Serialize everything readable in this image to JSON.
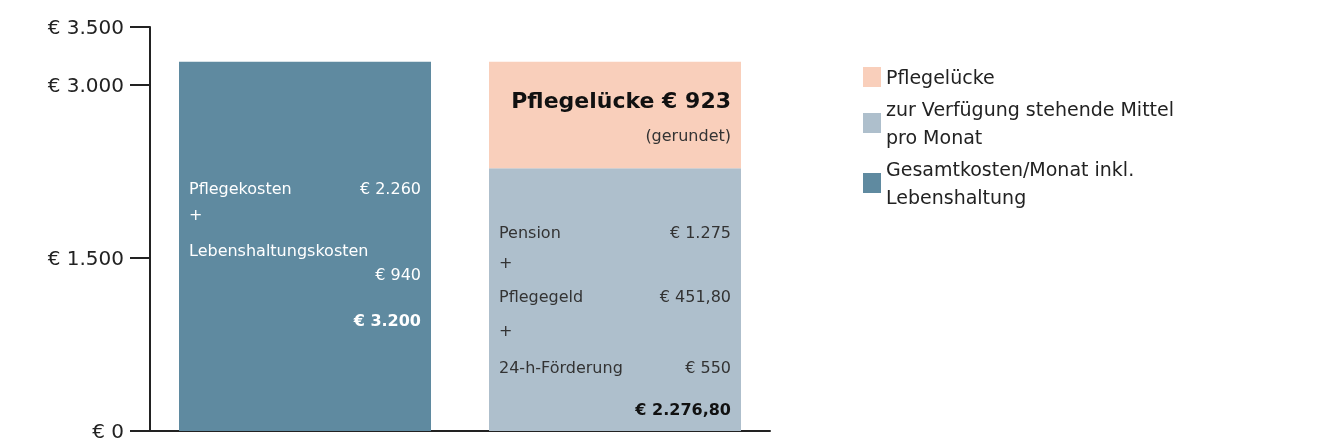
{
  "chart_data": {
    "type": "bar",
    "stacked": true,
    "categories": [
      null,
      null
    ],
    "series": [
      {
        "name": "Gesamtkosten/Monat inkl. Lebenshaltung",
        "color": "#5f8aa0",
        "values": [
          3200,
          null
        ]
      },
      {
        "name": "zur Verfügung stehende Mittel pro Monat",
        "color": "#aebfcc",
        "values": [
          null,
          2276.8
        ]
      },
      {
        "name": "Pflegelücke",
        "color": "#f9cfbb",
        "values": [
          null,
          923
        ]
      }
    ],
    "ylim": [
      0,
      3500
    ],
    "yticks": [
      {
        "value": 0,
        "label": "€ 0"
      },
      {
        "value": 1500,
        "label": "€ 1.500"
      },
      {
        "value": 3000,
        "label": "€ 3.000"
      },
      {
        "value": 3500,
        "label": "€ 3.500"
      }
    ],
    "tick_labels": "y",
    "grid": false,
    "legend": "right",
    "annotations": [
      "Pflegekosten",
      "€ 2.260",
      "+",
      "Lebenshaltungskosten",
      "€ 940",
      "€ 3.200",
      "Pflegelücke € 923",
      "(gerundet)",
      "Pension",
      "€ 1.275",
      "+",
      "Pflegegeld",
      "€ 451,80",
      "+",
      "24-h-Förderung",
      "€ 550",
      "€ 2.276,80"
    ]
  }
}
